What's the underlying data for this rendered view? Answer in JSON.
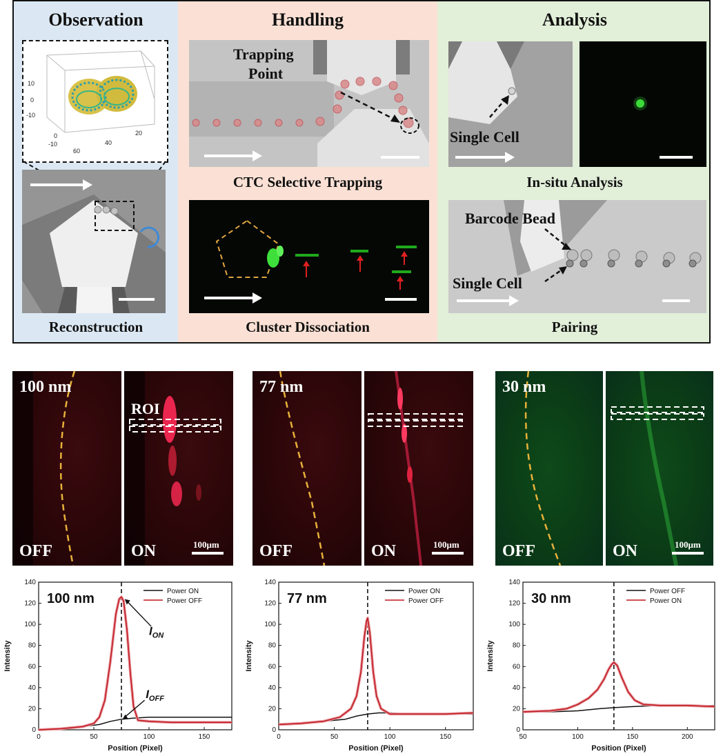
{
  "top": {
    "observation": {
      "title": "Observation",
      "caption": "Reconstruction",
      "plot_ticks_z": [
        "10",
        "0",
        "-10"
      ],
      "plot_ticks_x": [
        "60",
        "40",
        "20"
      ],
      "plot_ticks_y": [
        "0",
        "-10"
      ]
    },
    "handling": {
      "title": "Handling",
      "trapping_label_line1": "Trapping",
      "trapping_label_line2": "Point",
      "caption_top": "CTC Selective Trapping",
      "caption_bottom": "Cluster Dissociation"
    },
    "analysis": {
      "title": "Analysis",
      "single_cell_label": "Single Cell",
      "caption_top": "In-situ Analysis",
      "barcode_label": "Barcode Bead",
      "single_cell_label_2": "Single Cell",
      "caption_bottom": "Pairing"
    }
  },
  "panels": [
    {
      "size_label": "100 nm",
      "off_label": "OFF",
      "on_label": "ON",
      "roi_label": "ROI",
      "scale_label": "100μm",
      "color": "red"
    },
    {
      "size_label": "77 nm",
      "off_label": "OFF",
      "on_label": "ON",
      "scale_label": "100μm",
      "color": "red"
    },
    {
      "size_label": "30 nm",
      "off_label": "OFF",
      "on_label": "ON",
      "scale_label": "100μm",
      "color": "green"
    }
  ],
  "chart_data": [
    {
      "type": "line",
      "annotation": "100 nm",
      "xlabel": "Position (Pixel)",
      "ylabel": "Intensity",
      "xlim": [
        0,
        175
      ],
      "ylim": [
        0,
        140
      ],
      "xticks": [
        0,
        50,
        100,
        150
      ],
      "yticks": [
        0,
        20,
        40,
        60,
        80,
        100,
        120,
        140
      ],
      "peak_x": 75,
      "legend_position": "top-right",
      "label_on": "I",
      "label_on_sub": "ON",
      "label_off": "I",
      "label_off_sub": "OFF",
      "series": [
        {
          "name": "Power ON",
          "color": "#111111",
          "x": [
            0,
            20,
            40,
            55,
            65,
            75,
            85,
            100,
            120,
            150,
            175
          ],
          "y": [
            0,
            1,
            3,
            5,
            8,
            10,
            11,
            12,
            12,
            12,
            12
          ]
        },
        {
          "name": "Power OFF",
          "color": "#c0171d",
          "x": [
            0,
            20,
            40,
            50,
            55,
            60,
            65,
            70,
            73,
            75,
            77,
            80,
            83,
            86,
            90,
            100,
            120,
            150,
            175
          ],
          "y": [
            0,
            1,
            3,
            6,
            12,
            28,
            65,
            110,
            124,
            126,
            122,
            95,
            55,
            22,
            9,
            8,
            7,
            7,
            7
          ]
        }
      ]
    },
    {
      "type": "line",
      "annotation": "77 nm",
      "xlabel": "Position (Pixel)",
      "ylabel": "Intensity",
      "xlim": [
        0,
        175
      ],
      "ylim": [
        0,
        140
      ],
      "xticks": [
        0,
        50,
        100,
        150
      ],
      "yticks": [
        0,
        20,
        40,
        60,
        80,
        100,
        120,
        140
      ],
      "peak_x": 80,
      "legend_position": "top-right",
      "series": [
        {
          "name": "Power ON",
          "color": "#111111",
          "x": [
            0,
            20,
            40,
            60,
            70,
            80,
            90,
            100,
            120,
            150,
            175
          ],
          "y": [
            5,
            6,
            8,
            10,
            13,
            15,
            16,
            16,
            15,
            15,
            15
          ]
        },
        {
          "name": "Power OFF",
          "color": "#c0171d",
          "x": [
            0,
            20,
            40,
            55,
            65,
            70,
            74,
            77,
            79,
            80,
            82,
            85,
            88,
            92,
            100,
            120,
            150,
            175
          ],
          "y": [
            5,
            6,
            8,
            12,
            20,
            32,
            55,
            88,
            103,
            106,
            92,
            55,
            32,
            20,
            15,
            15,
            15,
            16
          ]
        }
      ]
    },
    {
      "type": "line",
      "annotation": "30 nm",
      "xlabel": "Position (Pixel)",
      "ylabel": "Intensity",
      "xlim": [
        50,
        225
      ],
      "ylim": [
        0,
        140
      ],
      "xticks": [
        50,
        100,
        150,
        200
      ],
      "yticks": [
        0,
        20,
        40,
        60,
        80,
        100,
        120,
        140
      ],
      "peak_x": 133,
      "legend_position": "top-right",
      "series": [
        {
          "name": "Power OFF",
          "color": "#111111",
          "x": [
            50,
            75,
            100,
            120,
            133,
            150,
            175,
            200,
            225
          ],
          "y": [
            17,
            17,
            18,
            20,
            21,
            22,
            23,
            23,
            23
          ]
        },
        {
          "name": "Power ON",
          "color": "#c0171d",
          "x": [
            50,
            75,
            90,
            100,
            110,
            118,
            124,
            128,
            131,
            133,
            136,
            140,
            146,
            152,
            160,
            175,
            200,
            225
          ],
          "y": [
            17,
            18,
            20,
            24,
            30,
            38,
            48,
            57,
            62,
            64,
            61,
            50,
            36,
            28,
            24,
            23,
            23,
            22
          ]
        }
      ]
    }
  ]
}
